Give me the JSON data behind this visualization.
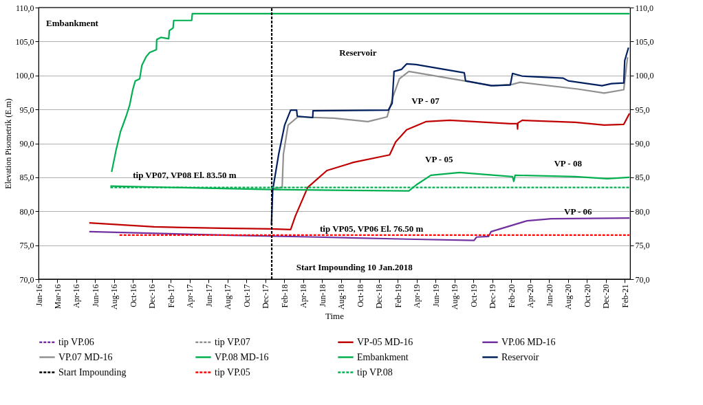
{
  "chart_data": {
    "type": "line",
    "xlabel": "Time",
    "ylabel": "Elevation Pisometrik (E.m)",
    "xlim": [
      "2016-01-01",
      "2021-02-20"
    ],
    "xticks": [
      {
        "value": "2016-01-01",
        "label": "Jan-16"
      },
      {
        "value": "2016-03-01",
        "label": "Mar-16"
      },
      {
        "value": "2016-04-30",
        "label": "Apr-16"
      },
      {
        "value": "2016-06-29",
        "label": "Jun-16"
      },
      {
        "value": "2016-08-28",
        "label": "Aug-16"
      },
      {
        "value": "2016-10-27",
        "label": "Oct-16"
      },
      {
        "value": "2016-12-26",
        "label": "Dec-16"
      },
      {
        "value": "2017-02-24",
        "label": "Feb-17"
      },
      {
        "value": "2017-04-25",
        "label": "Apr-17"
      },
      {
        "value": "2017-06-24",
        "label": "Jun-17"
      },
      {
        "value": "2017-08-23",
        "label": "Aug-17"
      },
      {
        "value": "2017-10-22",
        "label": "Oct-17"
      },
      {
        "value": "2017-12-21",
        "label": "Dec-17"
      },
      {
        "value": "2018-02-19",
        "label": "Feb-18"
      },
      {
        "value": "2018-04-20",
        "label": "Apr-18"
      },
      {
        "value": "2018-06-19",
        "label": "Jun-18"
      },
      {
        "value": "2018-08-18",
        "label": "Aug-18"
      },
      {
        "value": "2018-10-17",
        "label": "Oct-18"
      },
      {
        "value": "2018-12-16",
        "label": "Dec-18"
      },
      {
        "value": "2019-02-14",
        "label": "Feb-19"
      },
      {
        "value": "2019-04-15",
        "label": "Apr-19"
      },
      {
        "value": "2019-06-14",
        "label": "Jun-19"
      },
      {
        "value": "2019-08-13",
        "label": "Aug-19"
      },
      {
        "value": "2019-10-12",
        "label": "Oct-19"
      },
      {
        "value": "2019-12-11",
        "label": "Dec-19"
      },
      {
        "value": "2020-02-09",
        "label": "Feb-20"
      },
      {
        "value": "2020-04-09",
        "label": "Apr-20"
      },
      {
        "value": "2020-06-08",
        "label": "Jun-20"
      },
      {
        "value": "2020-08-07",
        "label": "Aug-20"
      },
      {
        "value": "2020-10-06",
        "label": "Oct-20"
      },
      {
        "value": "2020-12-05",
        "label": "Dec-20"
      },
      {
        "value": "2021-02-03",
        "label": "Feb-21"
      }
    ],
    "ylim": [
      70,
      110
    ],
    "yticks": [
      {
        "value": 70,
        "label": "70,0"
      },
      {
        "value": 75,
        "label": "75,0"
      },
      {
        "value": 80,
        "label": "80,0"
      },
      {
        "value": 85,
        "label": "85,0"
      },
      {
        "value": 90,
        "label": "90,0"
      },
      {
        "value": 95,
        "label": "95,0"
      },
      {
        "value": 100,
        "label": "100,0"
      },
      {
        "value": 105,
        "label": "105,0"
      },
      {
        "value": 110,
        "label": "110,0"
      }
    ],
    "y2lim": [
      70,
      110
    ],
    "y2ticks": [
      {
        "value": 70,
        "label": "70,0"
      },
      {
        "value": 75,
        "label": "75,0"
      },
      {
        "value": 80,
        "label": "80,0"
      },
      {
        "value": 85,
        "label": "85,0"
      },
      {
        "value": 90,
        "label": "90,0"
      },
      {
        "value": 95,
        "label": "95,0"
      },
      {
        "value": 100,
        "label": "100,0"
      },
      {
        "value": 105,
        "label": "105,0"
      },
      {
        "value": 110,
        "label": "110,0"
      }
    ],
    "grid": "y",
    "legend": "bottom",
    "series": [
      {
        "name": "tip VP.06",
        "color": "#7030a0",
        "line_style": "dashed"
      },
      {
        "name": "tip VP.07",
        "color": "#909090",
        "line_style": "dashed"
      },
      {
        "name": "VP-05 MD-16",
        "color": "#c00000",
        "x": [
          "2016-06-10",
          "2017-01-02",
          "2017-08-03",
          "2018-01-07",
          "2018-03-11",
          "2018-03-26",
          "2018-05-04",
          "2018-07-04",
          "2018-09-26",
          "2019-01-19",
          "2019-02-07",
          "2019-03-14",
          "2019-05-14",
          "2019-07-29",
          "2020-02-06",
          "2020-02-28",
          "2020-02-29",
          "2020-03-01",
          "2020-03-15",
          "2020-08-30",
          "2020-11-30",
          "2021-01-31",
          "2021-02-18"
        ],
        "values": [
          78.3,
          77.7,
          77.5,
          77.4,
          77.3,
          79.3,
          83.5,
          86.0,
          87.2,
          88.3,
          90.2,
          92.0,
          93.2,
          93.4,
          92.9,
          92.9,
          92.1,
          93.0,
          93.4,
          93.1,
          92.7,
          92.8,
          94.4
        ]
      },
      {
        "name": "VP.06 MD-16",
        "color": "#7030a0",
        "x": [
          "2016-06-10",
          "2017-08-03",
          "2018-06-01",
          "2019-03-14",
          "2019-10-14",
          "2019-10-22",
          "2019-11-29",
          "2019-12-07",
          "2020-03-30",
          "2020-06-15",
          "2021-02-18"
        ],
        "values": [
          77.0,
          76.5,
          76.2,
          75.9,
          75.7,
          76.2,
          76.3,
          77.0,
          78.6,
          78.9,
          79.0
        ]
      },
      {
        "name": "VP.07 MD-16",
        "color": "#909090",
        "x": [
          "2018-01-10",
          "2018-02-12",
          "2018-02-16",
          "2018-03-03",
          "2018-04-03",
          "2018-07-27",
          "2018-11-11",
          "2019-01-11",
          "2019-01-30",
          "2019-02-19",
          "2019-03-21",
          "2019-09-13",
          "2019-12-14",
          "2020-02-13",
          "2020-03-08",
          "2020-09-07",
          "2020-11-30",
          "2021-01-31",
          "2021-02-12"
        ],
        "values": [
          83.3,
          83.5,
          88.4,
          92.7,
          93.9,
          93.7,
          93.2,
          93.9,
          96.9,
          99.5,
          100.6,
          99.2,
          98.5,
          98.7,
          99.0,
          98.0,
          97.4,
          97.9,
          102.7
        ]
      },
      {
        "name": "VP.08 MD-16",
        "color": "#00b050",
        "x": [
          "2016-08-16",
          "2018-01-07",
          "2019-03-21",
          "2019-04-14",
          "2019-05-30",
          "2019-08-29",
          "2020-02-13",
          "2020-02-17",
          "2020-02-21",
          "2020-08-30",
          "2020-12-10",
          "2021-02-18"
        ],
        "values": [
          83.7,
          83.2,
          83.0,
          83.9,
          85.3,
          85.7,
          85.1,
          84.4,
          85.3,
          85.1,
          84.8,
          85.0
        ]
      },
      {
        "name": "Embankment",
        "color": "#00b050",
        "x": [
          "2016-08-20",
          "2016-09-03",
          "2016-09-17",
          "2016-10-05",
          "2016-10-16",
          "2016-10-26",
          "2016-11-03",
          "2016-11-17",
          "2016-11-24",
          "2016-12-08",
          "2016-12-19",
          "2017-01-09",
          "2017-01-10",
          "2017-01-23",
          "2017-02-17",
          "2017-02-19",
          "2017-03-03",
          "2017-03-05",
          "2017-05-01",
          "2017-05-03",
          "2021-02-18"
        ],
        "values": [
          85.8,
          89.0,
          91.7,
          94.0,
          95.6,
          97.9,
          99.2,
          99.5,
          101.5,
          102.8,
          103.4,
          103.8,
          105.3,
          105.6,
          105.4,
          106.6,
          107.0,
          108.1,
          108.1,
          109.1,
          109.1
        ]
      },
      {
        "name": "Reservoir",
        "color": "#002060",
        "x": [
          "2018-01-09",
          "2018-01-13",
          "2018-02-01",
          "2018-02-20",
          "2018-03-11",
          "2018-03-30",
          "2018-04-01",
          "2018-05-20",
          "2018-05-21",
          "2019-01-15",
          "2019-01-27",
          "2019-02-02",
          "2019-02-26",
          "2019-03-14",
          "2019-04-13",
          "2019-09-13",
          "2019-09-17",
          "2019-12-07",
          "2020-02-06",
          "2020-02-13",
          "2020-03-15",
          "2020-07-23",
          "2020-08-08",
          "2020-11-23",
          "2020-12-23",
          "2021-01-31",
          "2021-02-03",
          "2021-02-15"
        ],
        "values": [
          78.0,
          83.1,
          88.4,
          92.7,
          94.9,
          94.9,
          94.0,
          93.8,
          94.8,
          94.9,
          95.9,
          100.6,
          100.9,
          101.7,
          101.6,
          100.4,
          99.2,
          98.5,
          98.6,
          100.3,
          99.9,
          99.6,
          99.2,
          98.5,
          98.8,
          98.9,
          102.2,
          104.1
        ]
      },
      {
        "name": "Start Impounding",
        "color": "#000000",
        "line_style": "dashed",
        "x": [
          "2018-01-10",
          "2018-01-10"
        ],
        "values": [
          70,
          110
        ]
      },
      {
        "name": "tip VP.05",
        "color": "#ff0000",
        "line_style": "dashed",
        "x": [
          "2016-09-14",
          "2021-02-18"
        ],
        "values": [
          76.5,
          76.5
        ]
      },
      {
        "name": "tip VP.08",
        "color": "#00b050",
        "line_style": "dashed",
        "x": [
          "2016-08-16",
          "2021-02-18"
        ],
        "values": [
          83.5,
          83.5
        ]
      }
    ],
    "annotations": [
      "Embankment",
      "Reservoir",
      "VP - 07",
      "VP - 05",
      "VP - 08",
      "VP - 06",
      "tip VP07, VP08 El. 83.50 m",
      "tip VP05, VP06 El. 76.50 m",
      "Start Impounding 10 Jan.2018"
    ]
  }
}
